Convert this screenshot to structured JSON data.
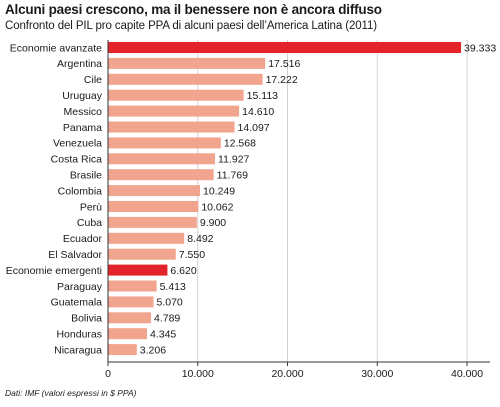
{
  "header": {
    "title": "Alcuni paesi crescono, ma il benessere non è ancora diffuso",
    "subtitle": "Confronto del PIL pro capite PPA di alcuni paesi dell’America Latina (2011)"
  },
  "footer": {
    "source": "Dati: IMF (valori espressi in $ PPA)"
  },
  "chart_data": {
    "type": "bar",
    "orientation": "horizontal",
    "title": "Alcuni paesi crescono, ma il benessere non è ancora diffuso",
    "subtitle": "Confronto del PIL pro capite PPA di alcuni paesi dell’America Latina (2011)",
    "categories": [
      "Economie avanzate",
      "Argentina",
      "Cile",
      "Uruguay",
      "Messico",
      "Panama",
      "Venezuela",
      "Costa Rica",
      "Brasile",
      "Colombia",
      "Perù",
      "Cuba",
      "Ecuador",
      "El Salvador",
      "Economie emergenti",
      "Paraguay",
      "Guatemala",
      "Bolivia",
      "Honduras",
      "Nicaragua"
    ],
    "values": [
      39333,
      17516,
      17222,
      15113,
      14610,
      14097,
      12568,
      11927,
      11769,
      10249,
      10062,
      9900,
      8492,
      7550,
      6620,
      5413,
      5070,
      4789,
      4345,
      3206
    ],
    "value_labels": [
      "39.333",
      "17.516",
      "17.222",
      "15.113",
      "14.610",
      "14.097",
      "12.568",
      "11.927",
      "11.769",
      "10.249",
      "10.062",
      "9.900",
      "8.492",
      "7.550",
      "6.620",
      "5.413",
      "5.070",
      "4.789",
      "4.345",
      "3.206"
    ],
    "highlighted": [
      "Economie avanzate",
      "Economie emergenti"
    ],
    "xlim": [
      0,
      42000
    ],
    "xticks": [
      0,
      10000,
      20000,
      30000,
      40000
    ],
    "xtick_labels": [
      "0",
      "10.000",
      "20.000",
      "30.000",
      "40.000"
    ],
    "grid": true,
    "colors": {
      "bar": "#f2a58e",
      "highlight": "#e2232a",
      "grid": "#c8c8c8",
      "axis": "#333333"
    }
  }
}
